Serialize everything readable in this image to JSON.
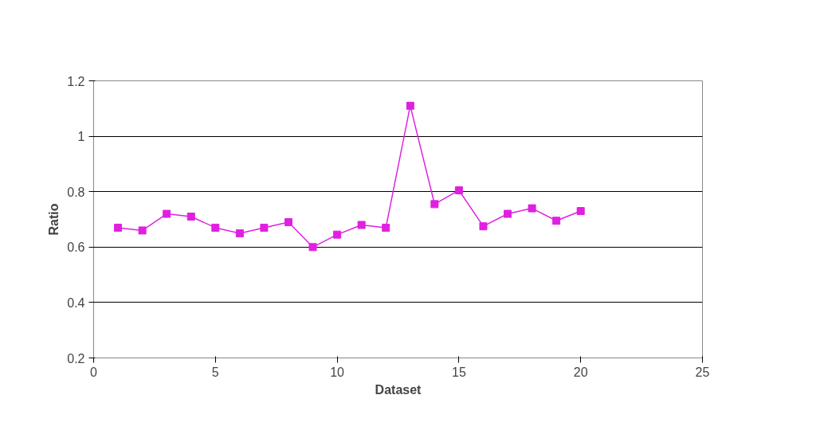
{
  "chart_data": {
    "type": "line",
    "xlabel": "Dataset",
    "ylabel": "Ratio",
    "x": [
      1,
      2,
      3,
      4,
      5,
      6,
      7,
      8,
      9,
      10,
      11,
      12,
      13,
      14,
      15,
      16,
      17,
      18,
      19,
      20
    ],
    "series": [
      {
        "color": "#e020e0",
        "values": [
          0.67,
          0.66,
          0.72,
          0.71,
          0.67,
          0.65,
          0.67,
          0.69,
          0.6,
          0.645,
          0.68,
          0.67,
          1.11,
          0.755,
          0.805,
          0.675,
          0.72,
          0.74,
          0.695,
          0.73
        ]
      }
    ],
    "xlim": [
      0,
      25
    ],
    "xticks": [
      0,
      5,
      10,
      15,
      20,
      25
    ],
    "ylim": [
      0.2,
      1.2
    ],
    "yticks": [
      0.2,
      0.4,
      0.6,
      0.8,
      1,
      1.2
    ],
    "grid": "y",
    "marker": "square",
    "line_style": "solid"
  }
}
